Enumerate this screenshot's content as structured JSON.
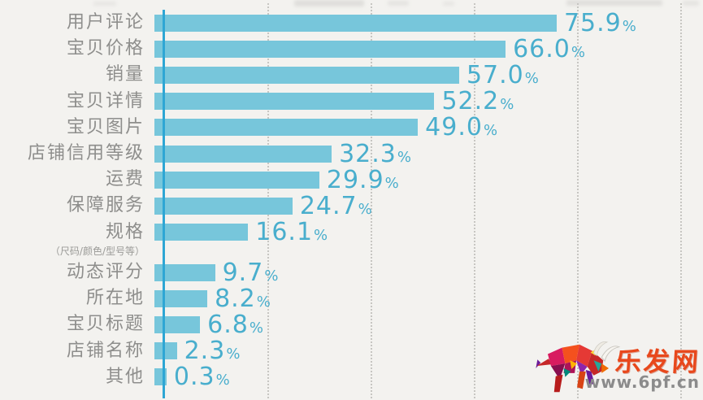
{
  "watermark": {
    "site_name": "乐发网",
    "site_url": "www.6pf.cn",
    "logo": "bull-logo",
    "name_color": "#e8481c",
    "url_color": "#8b8b8b"
  },
  "chart_data": {
    "type": "bar",
    "orientation": "horizontal",
    "title": "",
    "xlabel": "",
    "ylabel": "",
    "xlim": [
      0,
      100
    ],
    "grid": true,
    "gridline_interval_percent": 20,
    "legend": false,
    "background_color": "#f3f2ef",
    "bar_color": "#77c6db",
    "axis_line_color": "#2ea6d4",
    "value_label_color": "#49aecd",
    "category_label_color": "#8e8e8c",
    "gridline_color": "#c7c6c2",
    "categories": [
      "用户评论",
      "宝贝价格",
      "销量",
      "宝贝详情",
      "宝贝图片",
      "店铺信用等级",
      "运费",
      "保障服务",
      "规格",
      "动态评分",
      "所在地",
      "宝贝标题",
      "店铺名称",
      "其他"
    ],
    "values": [
      75.9,
      66.0,
      57.0,
      52.2,
      49.0,
      32.3,
      29.9,
      24.7,
      16.1,
      9.7,
      8.2,
      6.8,
      2.3,
      0.3
    ],
    "rows": [
      {
        "label": "用户评论",
        "value": 75.9,
        "display": "75.9%"
      },
      {
        "label": "宝贝价格",
        "value": 66.0,
        "display": "66.0%"
      },
      {
        "label": "销量",
        "value": 57.0,
        "display": "57.0%"
      },
      {
        "label": "宝贝详情",
        "value": 52.2,
        "display": "52.2%"
      },
      {
        "label": "宝贝图片",
        "value": 49.0,
        "display": "49.0%"
      },
      {
        "label": "店铺信用等级",
        "value": 32.3,
        "display": "32.3%"
      },
      {
        "label": "运费",
        "value": 29.9,
        "display": "29.9%"
      },
      {
        "label": "保障服务",
        "value": 24.7,
        "display": "24.7%"
      },
      {
        "label": "规格",
        "sublabel": "（尺码/颜色/型号等）",
        "value": 16.1,
        "display": "16.1%"
      },
      {
        "label": "动态评分",
        "value": 9.7,
        "display": "9.7%"
      },
      {
        "label": "所在地",
        "value": 8.2,
        "display": "8.2%"
      },
      {
        "label": "宝贝标题",
        "value": 6.8,
        "display": "6.8%"
      },
      {
        "label": "店铺名称",
        "value": 2.3,
        "display": "2.3%"
      },
      {
        "label": "其他",
        "value": 0.3,
        "display": "0.3%"
      }
    ]
  }
}
